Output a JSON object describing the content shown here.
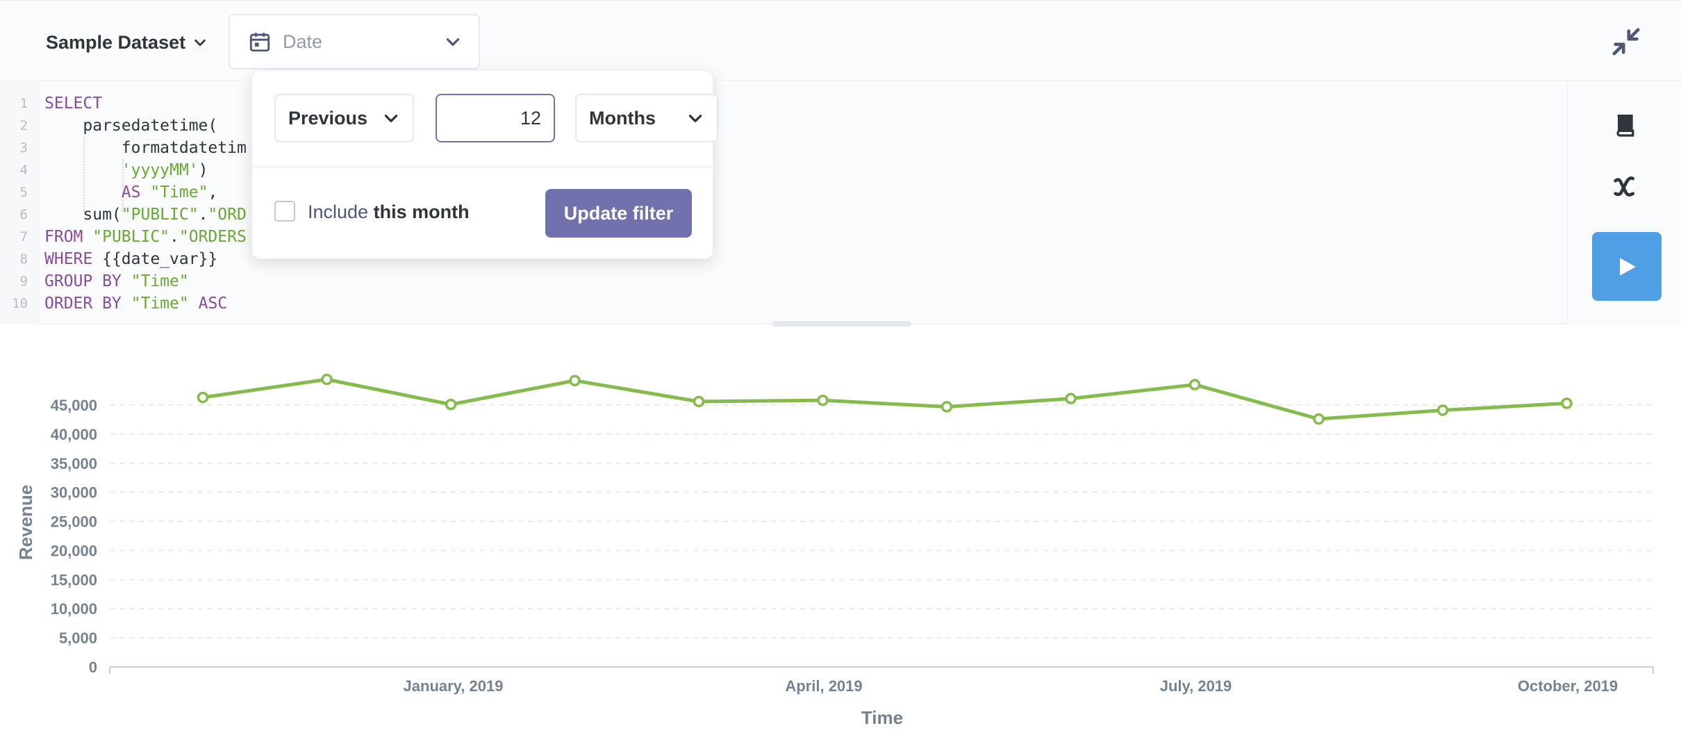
{
  "topbar": {
    "database_label": "Sample Dataset",
    "variable_widget_label": "Date"
  },
  "editor": {
    "line_numbers": [
      "1",
      "2",
      "3",
      "4",
      "5",
      "6",
      "7",
      "8",
      "9",
      "10"
    ],
    "lines": [
      [
        {
          "t": "SELECT",
          "c": "kw"
        }
      ],
      [
        {
          "t": "    parsedatetime(",
          "c": ""
        }
      ],
      [
        {
          "t": "        formatdatetim",
          "c": ""
        }
      ],
      [
        {
          "t": "        ",
          "c": ""
        },
        {
          "t": "'yyyyMM'",
          "c": "str"
        },
        {
          "t": ")",
          "c": ""
        }
      ],
      [
        {
          "t": "        ",
          "c": ""
        },
        {
          "t": "AS",
          "c": "kw"
        },
        {
          "t": " ",
          "c": ""
        },
        {
          "t": "\"Time\"",
          "c": "str"
        },
        {
          "t": ",",
          "c": ""
        }
      ],
      [
        {
          "t": "    sum(",
          "c": ""
        },
        {
          "t": "\"PUBLIC\"",
          "c": "str"
        },
        {
          "t": ".",
          "c": ""
        },
        {
          "t": "\"ORD",
          "c": "str"
        }
      ],
      [
        {
          "t": "FROM",
          "c": "kw"
        },
        {
          "t": " ",
          "c": ""
        },
        {
          "t": "\"PUBLIC\"",
          "c": "str"
        },
        {
          "t": ".",
          "c": ""
        },
        {
          "t": "\"ORDERS",
          "c": "str"
        }
      ],
      [
        {
          "t": "WHERE",
          "c": "kw"
        },
        {
          "t": " {{date_var}}",
          "c": ""
        }
      ],
      [
        {
          "t": "GROUP BY",
          "c": "kw"
        },
        {
          "t": " ",
          "c": ""
        },
        {
          "t": "\"Time\"",
          "c": "str"
        }
      ],
      [
        {
          "t": "ORDER BY",
          "c": "kw"
        },
        {
          "t": " ",
          "c": ""
        },
        {
          "t": "\"Time\"",
          "c": "str"
        },
        {
          "t": " ",
          "c": ""
        },
        {
          "t": "ASC",
          "c": "kw"
        }
      ]
    ]
  },
  "popover": {
    "direction_value": "Previous",
    "count_value": "12",
    "unit_value": "Months",
    "include_text": "Include",
    "include_bold": "this month",
    "include_checked": false,
    "update_label": "Update filter"
  },
  "colors": {
    "accent": "#7172ad",
    "run": "#509ee3",
    "series": "#84bb4c"
  },
  "icons": {
    "database_chevron": "chevron-down-icon",
    "variable": "calendar-icon",
    "collapse": "collapse-icon",
    "reference": "book-icon",
    "variables": "variable-x-icon",
    "run": "play-icon"
  },
  "chart_data": {
    "type": "line",
    "xlabel": "Time",
    "ylabel": "Revenue",
    "ylim": [
      0,
      45000
    ],
    "yticks": [
      0,
      5000,
      10000,
      15000,
      20000,
      25000,
      30000,
      35000,
      40000,
      45000
    ],
    "ytick_labels": [
      "0",
      "5,000",
      "10,000",
      "15,000",
      "20,000",
      "25,000",
      "30,000",
      "35,000",
      "40,000",
      "45,000"
    ],
    "x": [
      "2018-12",
      "2019-01",
      "2019-02",
      "2019-03",
      "2019-04",
      "2019-05",
      "2019-06",
      "2019-07",
      "2019-08",
      "2019-09",
      "2019-10",
      "2019-11"
    ],
    "xtick_labels": [
      {
        "x": "2019-01",
        "label": "January, 2019"
      },
      {
        "x": "2019-04",
        "label": "April, 2019"
      },
      {
        "x": "2019-07",
        "label": "July, 2019"
      },
      {
        "x": "2019-10",
        "label": "October, 2019"
      }
    ],
    "series": [
      {
        "values": [
          46300,
          49400,
          45100,
          49200,
          45600,
          45800,
          44700,
          46100,
          48500,
          42600,
          44100,
          45300
        ]
      }
    ],
    "grid": true,
    "legend": "none"
  }
}
